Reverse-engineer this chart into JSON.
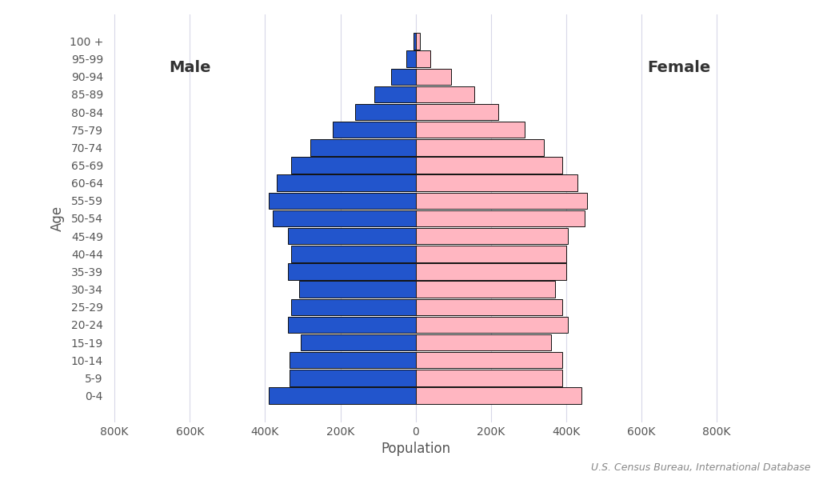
{
  "age_groups": [
    "0-4",
    "5-9",
    "10-14",
    "15-19",
    "20-24",
    "25-29",
    "30-34",
    "35-39",
    "40-44",
    "45-49",
    "50-54",
    "55-59",
    "60-64",
    "65-69",
    "70-74",
    "75-79",
    "80-84",
    "85-89",
    "90-94",
    "95-99",
    "100 +"
  ],
  "male": [
    390000,
    335000,
    335000,
    305000,
    340000,
    330000,
    310000,
    340000,
    330000,
    340000,
    380000,
    390000,
    370000,
    330000,
    280000,
    220000,
    160000,
    110000,
    65000,
    25000,
    5000
  ],
  "female": [
    440000,
    390000,
    390000,
    360000,
    405000,
    390000,
    370000,
    400000,
    400000,
    405000,
    450000,
    455000,
    430000,
    390000,
    340000,
    290000,
    220000,
    155000,
    95000,
    40000,
    12000
  ],
  "male_color": "#2255CC",
  "female_color": "#FFB6C1",
  "bar_edge_color": "#111111",
  "bar_edge_width": 0.7,
  "xlabel": "Population",
  "ylabel": "Age",
  "xlim": 820000,
  "xticks": [
    -800000,
    -600000,
    -400000,
    -200000,
    0,
    200000,
    400000,
    600000,
    800000
  ],
  "xtick_labels": [
    "800K",
    "600K",
    "400K",
    "200K",
    "0",
    "200K",
    "400K",
    "600K",
    "800K"
  ],
  "male_label": "Male",
  "female_label": "Female",
  "source_text": "U.S. Census Bureau, International Database",
  "background_color": "#ffffff",
  "grid_color": "#d8d8e8",
  "label_fontsize": 12,
  "tick_fontsize": 10,
  "source_fontsize": 9,
  "bar_height": 0.92
}
